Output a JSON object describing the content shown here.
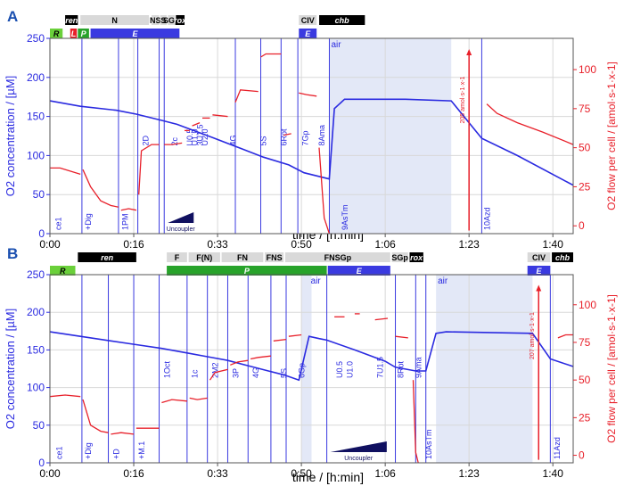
{
  "chart_data": [
    {
      "type": "line",
      "panel_label": "A",
      "xlabel": "time / [h:min]",
      "ylabel_left": "O2 concentration / [µM]",
      "ylabel_right": "O2 flow per cell / [amol·s-1·x-1]",
      "x_ticks": [
        "0:00",
        "0:16",
        "0:33",
        "0:50",
        "1:06",
        "1:23",
        "1:40"
      ],
      "x_tick_minutes": [
        0,
        16.5,
        33,
        49.5,
        66,
        82.5,
        99
      ],
      "xlim": [
        0,
        103
      ],
      "ylim_left": [
        0,
        250
      ],
      "ylim_right": [
        -5,
        120
      ],
      "y_ticks_left": [
        0,
        50,
        100,
        150,
        200,
        250
      ],
      "y_ticks_right": [
        0,
        25,
        50,
        75,
        100
      ],
      "grid": true,
      "top_bars": [
        {
          "label": "R",
          "start": 0,
          "end": 2.5,
          "row": 2,
          "color": "#6ad03a",
          "text_color": "#000000",
          "italic": true
        },
        {
          "label": "ren",
          "start": 3,
          "end": 5.5,
          "row": 1,
          "color": "#000000",
          "text_color": "#ffffff",
          "italic": true
        },
        {
          "label": "N",
          "start": 6,
          "end": 19.5,
          "row": 1,
          "color": "#d9d9d9",
          "text_color": "#000000",
          "italic": false
        },
        {
          "label": "NS",
          "start": 20,
          "end": 21.5,
          "row": 1,
          "color": "#d9d9d9",
          "text_color": "#000000",
          "italic": false
        },
        {
          "label": "S",
          "start": 21.7,
          "end": 23,
          "row": 1,
          "color": "#d9d9d9",
          "text_color": "#000000",
          "italic": false
        },
        {
          "label": "SGp",
          "start": 23.2,
          "end": 24.6,
          "row": 1,
          "color": "#d9d9d9",
          "text_color": "#000000",
          "italic": false
        },
        {
          "label": "rox",
          "start": 24.8,
          "end": 26.5,
          "row": 1,
          "color": "#000000",
          "text_color": "#ffffff",
          "italic": true
        },
        {
          "label": "L",
          "start": 4,
          "end": 5.3,
          "row": 2,
          "color": "#e8202a",
          "text_color": "#ffffff",
          "italic": true
        },
        {
          "label": "P",
          "start": 5.5,
          "end": 7.7,
          "row": 2,
          "color": "#27a32a",
          "text_color": "#ffffff",
          "italic": true
        },
        {
          "label": "E",
          "start": 8,
          "end": 25.5,
          "row": 2,
          "color": "#3a3ae0",
          "text_color": "#ffffff",
          "italic": true
        },
        {
          "label": "CIV",
          "start": 49,
          "end": 52.5,
          "row": 1,
          "color": "#d9d9d9",
          "text_color": "#000000",
          "italic": false
        },
        {
          "label": "chb",
          "start": 53,
          "end": 62,
          "row": 1,
          "color": "#000000",
          "text_color": "#ffffff",
          "italic": true
        },
        {
          "label": "E",
          "start": 49,
          "end": 52.5,
          "row": 2,
          "color": "#3a3ae0",
          "text_color": "#ffffff",
          "italic": true
        }
      ],
      "events": [
        {
          "label": "ce1",
          "t": 0.6
        },
        {
          "label": "+Dig",
          "t": 6.5
        },
        {
          "label": "1PM",
          "t": 13.8
        },
        {
          "label": "2D",
          "t": 17.8
        },
        {
          "label": "2c",
          "t": 23.5
        },
        {
          "label": "U0.5",
          "t": 26.5
        },
        {
          "label": "U1.0",
          "t": 27.5
        },
        {
          "label": "3U1.5",
          "t": 28.5
        },
        {
          "label": "U2.0",
          "t": 29.5
        },
        {
          "label": "4G",
          "t": 35
        },
        {
          "label": "5S",
          "t": 41
        },
        {
          "label": "6Rot",
          "t": 45
        },
        {
          "label": "7Gp",
          "t": 49.2
        },
        {
          "label": "8Ama",
          "t": 52.5
        },
        {
          "label": "air",
          "t": 55
        },
        {
          "label": "9AsTm",
          "t": 57
        },
        {
          "label": "10Azd",
          "t": 85
        }
      ],
      "vlines": [
        6.3,
        13.5,
        17.3,
        21.5,
        22.5,
        36.5,
        41.5,
        45.5,
        48.8,
        55,
        85
      ],
      "shaded": [
        [
          55,
          79
        ]
      ],
      "uncoupler_ramp": {
        "label": "Uncoupler",
        "start": 22.5,
        "end": 29
      },
      "annotation": {
        "label": "205 amol·s-1·x-1",
        "t": 82.5
      },
      "series": [
        {
          "name": "O2 concentration",
          "axis": "left",
          "color": "#2a2ae0",
          "x": [
            0,
            6,
            13,
            17,
            22,
            25,
            32,
            38,
            42,
            47,
            50,
            55,
            56,
            58,
            70,
            79,
            85,
            92,
            103
          ],
          "y": [
            170,
            163,
            158,
            153,
            145,
            140,
            123,
            108,
            98,
            88,
            78,
            70,
            160,
            172,
            172,
            170,
            122,
            100,
            62
          ]
        },
        {
          "name": "O2 flow per cell",
          "axis": "right",
          "color": "#e8202a",
          "segments": [
            {
              "x": [
                0,
                2,
                4,
                6
              ],
              "y": [
                37,
                37,
                35,
                33
              ]
            },
            {
              "x": [
                6.5,
                8,
                10,
                12,
                13.5
              ],
              "y": [
                36,
                25,
                16,
                13,
                12
              ]
            },
            {
              "x": [
                14,
                15.5,
                17
              ],
              "y": [
                10,
                11,
                10
              ]
            },
            {
              "x": [
                17.5,
                18,
                20,
                21.5
              ],
              "y": [
                20,
                48,
                52,
                52
              ]
            },
            {
              "x": [
                22.5,
                24,
                26
              ],
              "y": [
                52,
                52,
                53
              ]
            },
            {
              "x": [
                26.5,
                27.5
              ],
              "y": [
                61,
                61
              ]
            },
            {
              "x": [
                28,
                29.5
              ],
              "y": [
                64,
                66
              ]
            },
            {
              "x": [
                30,
                31.5
              ],
              "y": [
                69,
                69
              ]
            },
            {
              "x": [
                32,
                35
              ],
              "y": [
                71,
                70
              ]
            },
            {
              "x": [
                36.5,
                37.5,
                41
              ],
              "y": [
                79,
                87,
                86
              ]
            },
            {
              "x": [
                41.5,
                42.5,
                45.5
              ],
              "y": [
                108,
                110,
                110
              ]
            },
            {
              "x": [
                46,
                47.5
              ],
              "y": [
                58,
                59
              ]
            },
            {
              "x": [
                49,
                50.5,
                52.5
              ],
              "y": [
                85,
                84,
                83
              ]
            },
            {
              "x": [
                53,
                54,
                55
              ],
              "y": [
                50,
                5,
                -5
              ]
            },
            {
              "x": [
                86,
                88,
                92,
                97,
                103
              ],
              "y": [
                78,
                72,
                66,
                60,
                52
              ]
            }
          ]
        }
      ]
    },
    {
      "type": "line",
      "panel_label": "B",
      "xlabel": "time / [h:min]",
      "ylabel_left": "O2 concentration / [µM]",
      "ylabel_right": "O2 flow per cell / [amol·s-1·x-1]",
      "x_ticks": [
        "0:00",
        "0:16",
        "0:33",
        "0:50",
        "1:06",
        "1:23",
        "1:40"
      ],
      "x_tick_minutes": [
        0,
        16.5,
        33,
        49.5,
        66,
        82.5,
        99
      ],
      "xlim": [
        0,
        103
      ],
      "ylim_left": [
        0,
        250
      ],
      "ylim_right": [
        -5,
        120
      ],
      "y_ticks_left": [
        0,
        50,
        100,
        150,
        200,
        250
      ],
      "y_ticks_right": [
        0,
        25,
        50,
        75,
        100
      ],
      "grid": true,
      "top_bars": [
        {
          "label": "R",
          "start": 0,
          "end": 5,
          "row": 2,
          "color": "#6ad03a",
          "text_color": "#000000",
          "italic": true
        },
        {
          "label": "ren",
          "start": 5.5,
          "end": 17,
          "row": 1,
          "color": "#000000",
          "text_color": "#ffffff",
          "italic": true
        },
        {
          "label": "F",
          "start": 23,
          "end": 27,
          "row": 1,
          "color": "#d9d9d9",
          "text_color": "#000000",
          "italic": false
        },
        {
          "label": "F(N)",
          "start": 27.3,
          "end": 33.5,
          "row": 1,
          "color": "#d9d9d9",
          "text_color": "#000000",
          "italic": false
        },
        {
          "label": "FN",
          "start": 33.8,
          "end": 42,
          "row": 1,
          "color": "#d9d9d9",
          "text_color": "#000000",
          "italic": false
        },
        {
          "label": "FNS",
          "start": 42.3,
          "end": 46,
          "row": 1,
          "color": "#d9d9d9",
          "text_color": "#000000",
          "italic": false
        },
        {
          "label": "FNSGp",
          "start": 46.3,
          "end": 67,
          "row": 1,
          "color": "#d9d9d9",
          "text_color": "#000000",
          "italic": false
        },
        {
          "label": "SGp",
          "start": 67.3,
          "end": 70.5,
          "row": 1,
          "color": "#d9d9d9",
          "text_color": "#000000",
          "italic": false
        },
        {
          "label": "rox",
          "start": 70.8,
          "end": 73.5,
          "row": 1,
          "color": "#000000",
          "text_color": "#ffffff",
          "italic": true
        },
        {
          "label": "P",
          "start": 23,
          "end": 54.5,
          "row": 2,
          "color": "#27a32a",
          "text_color": "#ffffff",
          "italic": true
        },
        {
          "label": "E",
          "start": 54.7,
          "end": 67,
          "row": 2,
          "color": "#3a3ae0",
          "text_color": "#ffffff",
          "italic": true
        },
        {
          "label": "CIV",
          "start": 94,
          "end": 98.5,
          "row": 1,
          "color": "#d9d9d9",
          "text_color": "#000000",
          "italic": false
        },
        {
          "label": "chb",
          "start": 98.8,
          "end": 103,
          "row": 1,
          "color": "#000000",
          "text_color": "#ffffff",
          "italic": true
        },
        {
          "label": "E",
          "start": 94,
          "end": 98.5,
          "row": 2,
          "color": "#3a3ae0",
          "text_color": "#ffffff",
          "italic": true
        }
      ],
      "events": [
        {
          "label": "ce1",
          "t": 0.8
        },
        {
          "label": "+Dig",
          "t": 6.5
        },
        {
          "label": "+D",
          "t": 12
        },
        {
          "label": "+M.1",
          "t": 17
        },
        {
          "label": "1Oct",
          "t": 22
        },
        {
          "label": "1c",
          "t": 27.5
        },
        {
          "label": "2M2",
          "t": 31.5
        },
        {
          "label": "3P",
          "t": 35.5
        },
        {
          "label": "4G",
          "t": 39.5
        },
        {
          "label": "5S",
          "t": 45
        },
        {
          "label": "6Gp",
          "t": 48.5
        },
        {
          "label": "air",
          "t": 51
        },
        {
          "label": "U0.5",
          "t": 56
        },
        {
          "label": "U1.0",
          "t": 58
        },
        {
          "label": "7U1.5",
          "t": 64
        },
        {
          "label": "8Rot",
          "t": 68
        },
        {
          "label": "9Ama",
          "t": 71.5
        },
        {
          "label": "10AsTm",
          "t": 73.5
        },
        {
          "label": "air",
          "t": 76
        },
        {
          "label": "11Azd",
          "t": 98.8
        }
      ],
      "vlines": [
        6.3,
        11.5,
        16.5,
        21.5,
        27,
        31,
        35,
        39,
        43.5,
        46.5,
        54.5,
        68,
        72,
        74,
        98.5
      ],
      "shaded": [
        [
          49.5,
          51.5
        ],
        [
          76,
          95
        ]
      ],
      "uncoupler_ramp": {
        "label": "Uncoupler",
        "start": 54.5,
        "end": 67
      },
      "annotation": {
        "label": "207 amol·s-1·x-1",
        "t": 96.2
      },
      "series": [
        {
          "name": "O2 concentration",
          "axis": "left",
          "color": "#2a2ae0",
          "x": [
            0,
            6,
            12,
            17,
            22,
            27,
            31,
            35,
            39,
            43,
            46,
            49,
            51,
            53,
            54.5,
            60,
            66,
            68,
            72,
            74,
            76,
            78,
            95,
            98.5,
            103
          ],
          "y": [
            174,
            168,
            162,
            157,
            152,
            146,
            141,
            136,
            129,
            122,
            117,
            110,
            168,
            165,
            163,
            150,
            135,
            127,
            122,
            122,
            172,
            174,
            172,
            138,
            128
          ]
        },
        {
          "name": "O2 flow per cell",
          "axis": "right",
          "color": "#e8202a",
          "segments": [
            {
              "x": [
                0,
                3,
                6
              ],
              "y": [
                39,
                40,
                39
              ]
            },
            {
              "x": [
                6.5,
                8,
                10,
                11.5
              ],
              "y": [
                37,
                20,
                16,
                15
              ]
            },
            {
              "x": [
                12,
                14,
                16.5
              ],
              "y": [
                14,
                15,
                14
              ]
            },
            {
              "x": [
                17,
                19,
                21.5
              ],
              "y": [
                18,
                18,
                18
              ]
            },
            {
              "x": [
                22,
                24,
                27
              ],
              "y": [
                35,
                37,
                36
              ]
            },
            {
              "x": [
                27.5,
                29,
                31
              ],
              "y": [
                38,
                37,
                38
              ]
            },
            {
              "x": [
                31.5,
                32.5,
                35
              ],
              "y": [
                50,
                55,
                57
              ]
            },
            {
              "x": [
                35.5,
                37,
                39
              ],
              "y": [
                60,
                62,
                63
              ]
            },
            {
              "x": [
                39.5,
                41,
                43.5
              ],
              "y": [
                64,
                65,
                66
              ]
            },
            {
              "x": [
                44,
                46.5
              ],
              "y": [
                76,
                77
              ]
            },
            {
              "x": [
                47,
                49.5
              ],
              "y": [
                79,
                80
              ]
            },
            {
              "x": [
                56,
                58
              ],
              "y": [
                92,
                92
              ]
            },
            {
              "x": [
                60,
                61
              ],
              "y": [
                94,
                94
              ]
            },
            {
              "x": [
                64,
                66.5
              ],
              "y": [
                90,
                91
              ]
            },
            {
              "x": [
                68,
                70.5
              ],
              "y": [
                79,
                78
              ]
            },
            {
              "x": [
                71.5,
                72,
                72.5
              ],
              "y": [
                50,
                2,
                -5
              ]
            },
            {
              "x": [
                100,
                101.5,
                103
              ],
              "y": [
                78,
                80,
                80
              ]
            }
          ]
        }
      ]
    }
  ]
}
